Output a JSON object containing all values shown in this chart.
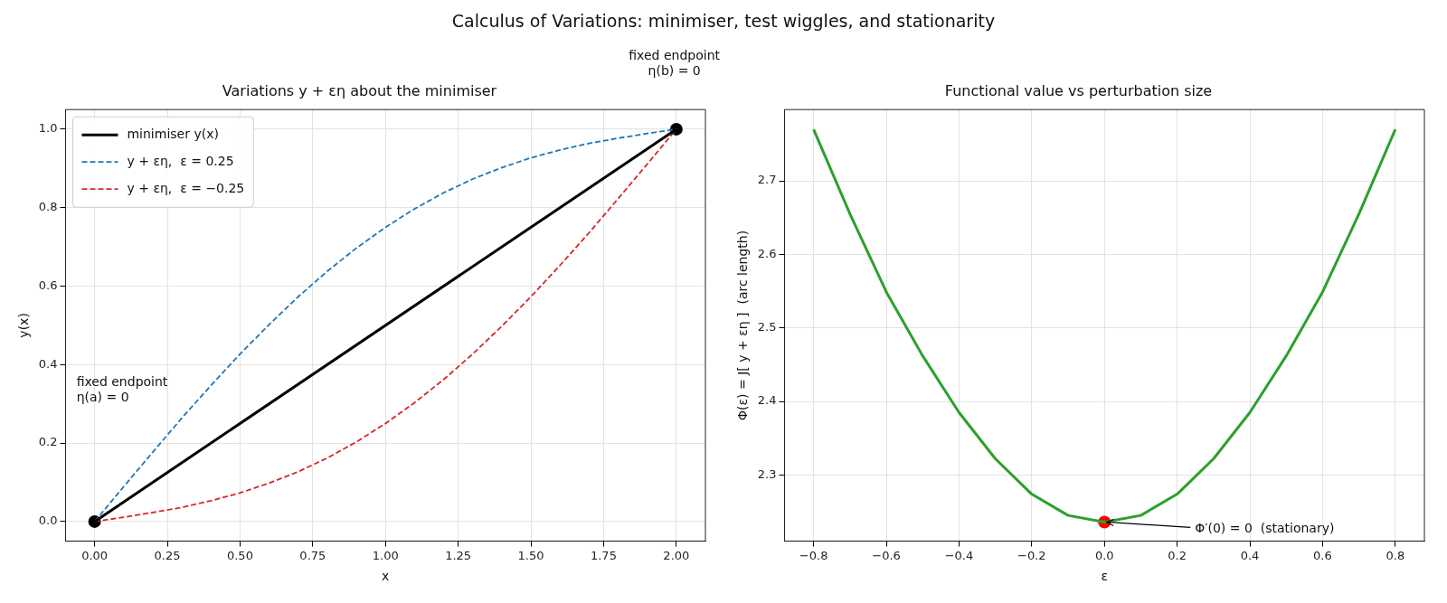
{
  "chart_data": [
    {
      "type": "line",
      "title": "Variations y + εη about the minimiser",
      "xlabel": "x",
      "ylabel": "y(x)",
      "xlim": [
        -0.1,
        2.1
      ],
      "ylim": [
        -0.05,
        1.05
      ],
      "xticks": [
        {
          "value": 0,
          "label": "0.00"
        },
        {
          "value": 0.25,
          "label": "0.25"
        },
        {
          "value": 0.5,
          "label": "0.50"
        },
        {
          "value": 0.75,
          "label": "0.75"
        },
        {
          "value": 1,
          "label": "1.00"
        },
        {
          "value": 1.25,
          "label": "1.25"
        },
        {
          "value": 1.5,
          "label": "1.50"
        },
        {
          "value": 1.75,
          "label": "1.75"
        },
        {
          "value": 2,
          "label": "2.00"
        }
      ],
      "yticks": [
        {
          "value": 0,
          "label": "0.0"
        },
        {
          "value": 0.2,
          "label": "0.2"
        },
        {
          "value": 0.4,
          "label": "0.4"
        },
        {
          "value": 0.6,
          "label": "0.6"
        },
        {
          "value": 0.8,
          "label": "0.8"
        },
        {
          "value": 1,
          "label": "1.0"
        }
      ],
      "grid": true,
      "legend": "top left",
      "series": [
        {
          "name": "minimiser y(x)",
          "type": "line",
          "color": "#000000",
          "line_style": "solid",
          "marker": "none",
          "x": [
            0,
            2
          ],
          "values": [
            0,
            1
          ]
        },
        {
          "name": "y + εη,  ε = 0.25",
          "type": "line",
          "color": "#1f77b4",
          "line_style": "dashed",
          "marker": "none",
          "x": [
            0,
            0.1,
            0.2,
            0.3,
            0.4,
            0.5,
            0.6,
            0.7,
            0.8,
            0.9,
            1,
            1.1,
            1.2,
            1.3,
            1.4,
            1.5,
            1.6,
            1.7,
            1.8,
            1.9,
            2
          ],
          "values": [
            0,
            0.089,
            0.177,
            0.264,
            0.347,
            0.427,
            0.502,
            0.573,
            0.638,
            0.697,
            0.75,
            0.797,
            0.838,
            0.873,
            0.902,
            0.927,
            0.947,
            0.964,
            0.977,
            0.989,
            1
          ]
        },
        {
          "name": "y + εη,  ε = −0.25",
          "type": "line",
          "color": "#d62728",
          "line_style": "dashed",
          "marker": "none",
          "x": [
            0,
            0.1,
            0.2,
            0.3,
            0.4,
            0.5,
            0.6,
            0.7,
            0.8,
            0.9,
            1,
            1.1,
            1.2,
            1.3,
            1.4,
            1.5,
            1.6,
            1.7,
            1.8,
            1.9,
            2
          ],
          "values": [
            0,
            0.011,
            0.023,
            0.036,
            0.053,
            0.073,
            0.098,
            0.127,
            0.162,
            0.203,
            0.25,
            0.303,
            0.362,
            0.427,
            0.498,
            0.573,
            0.653,
            0.736,
            0.823,
            0.911,
            1
          ]
        },
        {
          "type": "scatter",
          "color": "#000000",
          "marker": "circle",
          "x": [
            0,
            2
          ],
          "values": [
            0,
            1
          ]
        }
      ],
      "annotations": [
        "Calculus of Variations: minimiser, test wiggles, and stationarity",
        "fixed endpoint\nη(a) = 0",
        "fixed endpoint\nη(b) = 0"
      ]
    },
    {
      "type": "line",
      "title": "Functional value vs perturbation size",
      "xlabel": "ε",
      "ylabel": "Φ(ε) = J[ y + εη ]  (arc length)",
      "xlim": [
        -0.88,
        0.88
      ],
      "ylim": [
        2.21,
        2.797
      ],
      "xticks": [
        {
          "value": -0.8,
          "label": "−0.8"
        },
        {
          "value": -0.6,
          "label": "−0.6"
        },
        {
          "value": -0.4,
          "label": "−0.4"
        },
        {
          "value": -0.2,
          "label": "−0.2"
        },
        {
          "value": 0,
          "label": "0.0"
        },
        {
          "value": 0.2,
          "label": "0.2"
        },
        {
          "value": 0.4,
          "label": "0.4"
        },
        {
          "value": 0.6,
          "label": "0.6"
        },
        {
          "value": 0.8,
          "label": "0.8"
        }
      ],
      "yticks": [
        2.3,
        2.4,
        2.5,
        2.6,
        2.7
      ],
      "grid": true,
      "series": [
        {
          "type": "line",
          "color": "#2ca02c",
          "line_style": "solid",
          "marker": "none",
          "x": [
            -0.8,
            -0.7,
            -0.6,
            -0.5,
            -0.4,
            -0.3,
            -0.2,
            -0.1,
            0,
            0.1,
            0.2,
            0.3,
            0.4,
            0.5,
            0.6,
            0.7,
            0.8
          ],
          "values": [
            2.77,
            2.655,
            2.549,
            2.462,
            2.385,
            2.322,
            2.274,
            2.245,
            2.236,
            2.245,
            2.274,
            2.322,
            2.385,
            2.462,
            2.549,
            2.655,
            2.77
          ]
        },
        {
          "type": "scatter",
          "color": "#ff0000",
          "marker": "circle",
          "x": [
            0
          ],
          "values": [
            2.236
          ]
        }
      ],
      "annotations": [
        {
          "text": "Φ′(0) = 0  (stationary)",
          "x": 0,
          "y": 2.236
        }
      ]
    }
  ]
}
